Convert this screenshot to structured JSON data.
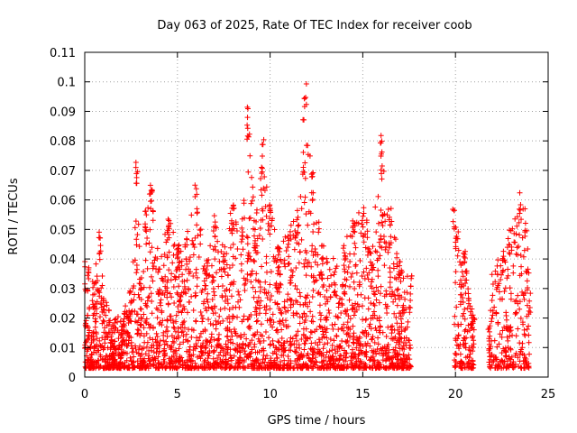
{
  "chart_data": {
    "type": "scatter",
    "title": "Day 063 of 2025, Rate Of TEC Index for receiver coob",
    "xlabel": "GPS time / hours",
    "ylabel": "ROTI / TECUs",
    "xlim": [
      0,
      25
    ],
    "ylim": [
      0,
      0.11
    ],
    "xticks": [
      0,
      5,
      10,
      15,
      20,
      25
    ],
    "yticks": [
      0,
      0.01,
      0.02,
      0.03,
      0.04,
      0.05,
      0.06,
      0.07,
      0.08,
      0.09,
      0.1,
      0.11
    ],
    "grid": true,
    "marker": "+",
    "color": "#ff0000",
    "series": [
      {
        "envelope": {
          "x": [
            0.0,
            0.2,
            0.5,
            0.8,
            1.0,
            1.5,
            2.0,
            2.5,
            2.8,
            3.0,
            3.3,
            3.6,
            4.0,
            4.5,
            5.0,
            5.5,
            6.0,
            6.5,
            7.0,
            7.5,
            8.0,
            8.5,
            8.8,
            9.2,
            9.6,
            10.0,
            10.5,
            11.0,
            11.5,
            11.9,
            12.3,
            12.8,
            13.5,
            14.0,
            14.5,
            15.0,
            15.5,
            16.0,
            16.5,
            17.0,
            17.6
          ],
          "max": [
            0.04,
            0.038,
            0.032,
            0.05,
            0.03,
            0.02,
            0.022,
            0.03,
            0.073,
            0.035,
            0.06,
            0.065,
            0.04,
            0.055,
            0.045,
            0.05,
            0.065,
            0.04,
            0.055,
            0.045,
            0.06,
            0.055,
            0.092,
            0.05,
            0.081,
            0.06,
            0.045,
            0.05,
            0.057,
            0.101,
            0.07,
            0.045,
            0.04,
            0.045,
            0.055,
            0.06,
            0.045,
            0.082,
            0.058,
            0.04,
            0.035
          ]
        },
        "x_extra": [
          19.9,
          20.1,
          20.3,
          20.5,
          20.7,
          20.9,
          21.0,
          21.8,
          22.0,
          22.3,
          22.6,
          22.9,
          23.2,
          23.5,
          23.8,
          24.0
        ],
        "y_extra_max": [
          0.059,
          0.05,
          0.04,
          0.045,
          0.03,
          0.025,
          0.02,
          0.019,
          0.035,
          0.04,
          0.045,
          0.05,
          0.055,
          0.063,
          0.058,
          0.03
        ]
      }
    ]
  }
}
